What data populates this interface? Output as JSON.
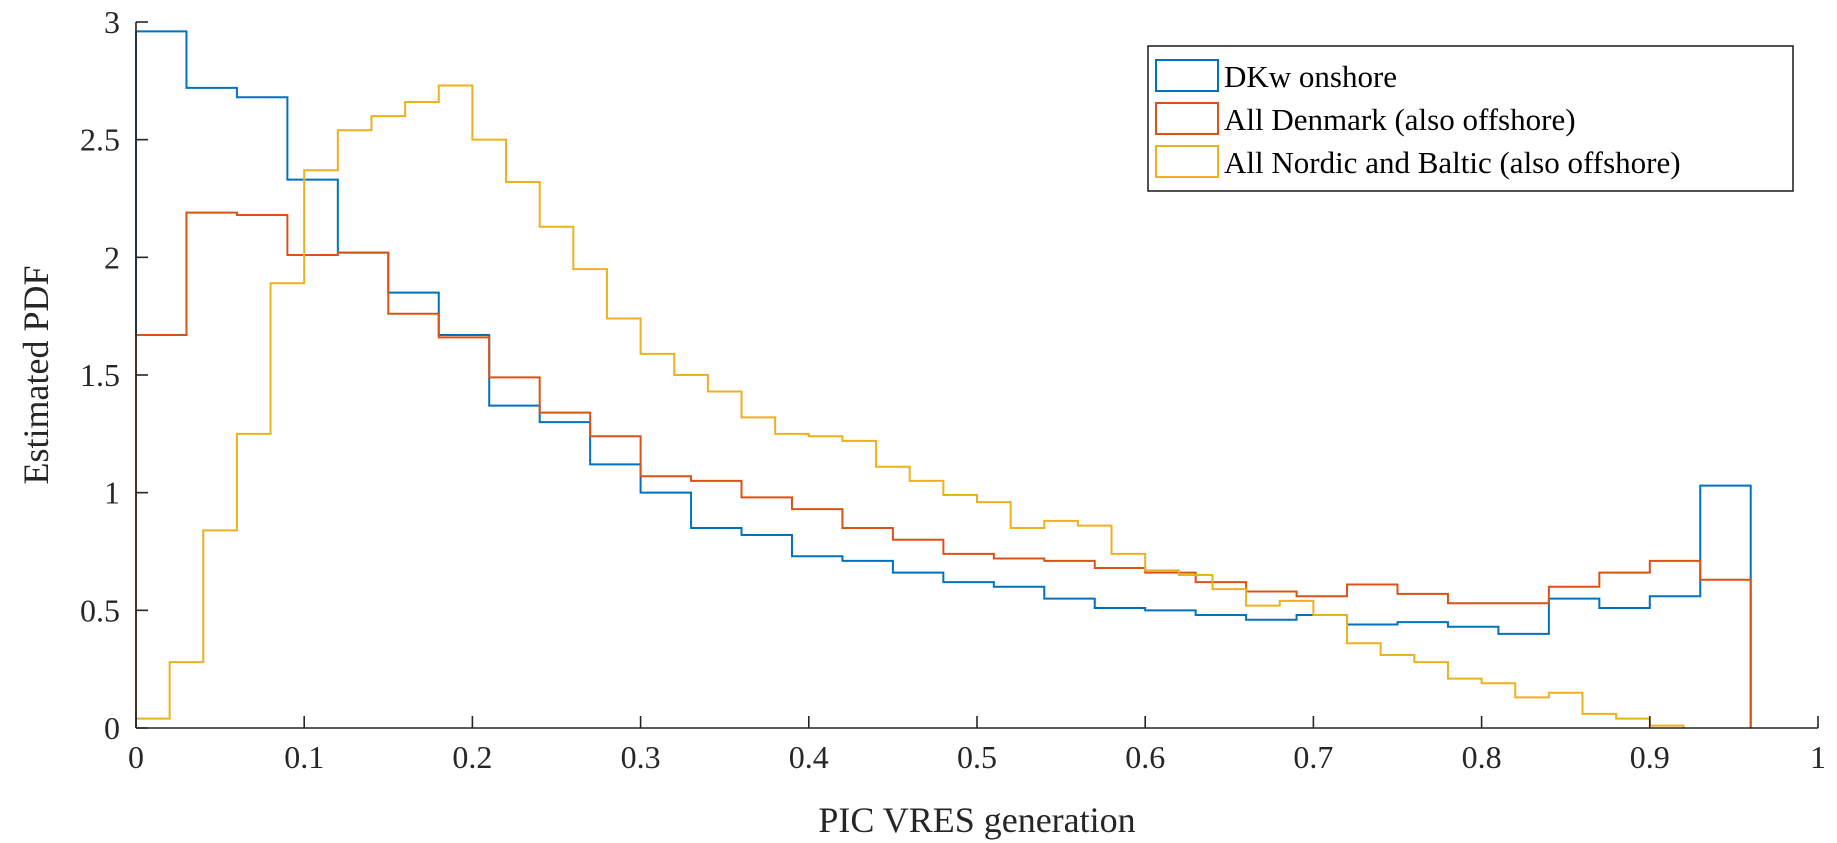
{
  "chart_data": {
    "type": "histogram-stairs",
    "xlabel": "PIC VRES generation",
    "ylabel": "Estimated PDF",
    "xlim": [
      0,
      1
    ],
    "ylim": [
      0,
      3
    ],
    "xticks": [
      0,
      0.1,
      0.2,
      0.3,
      0.4,
      0.5,
      0.6,
      0.7,
      0.8,
      0.9,
      1
    ],
    "xtick_labels": [
      "0",
      "0.1",
      "0.2",
      "0.3",
      "0.4",
      "0.5",
      "0.6",
      "0.7",
      "0.8",
      "0.9",
      "1"
    ],
    "yticks": [
      0,
      0.5,
      1,
      1.5,
      2,
      2.5,
      3
    ],
    "ytick_labels": [
      "0",
      "0.5",
      "1",
      "1.5",
      "2",
      "2.5",
      "3"
    ],
    "grid": false,
    "legend_position": "top-right",
    "series": [
      {
        "name": "DKw onshore",
        "color": "#0072BD",
        "edges": [
          0,
          0.03,
          0.06,
          0.09,
          0.12,
          0.15,
          0.18,
          0.21,
          0.24,
          0.27,
          0.3,
          0.33,
          0.36,
          0.39,
          0.42,
          0.45,
          0.48,
          0.51,
          0.54,
          0.57,
          0.6,
          0.63,
          0.66,
          0.69,
          0.72,
          0.75,
          0.78,
          0.81,
          0.84,
          0.87,
          0.9,
          0.93,
          0.96
        ],
        "values": [
          2.96,
          2.72,
          2.68,
          2.33,
          2.02,
          1.85,
          1.67,
          1.37,
          1.3,
          1.12,
          1.0,
          0.85,
          0.82,
          0.73,
          0.71,
          0.66,
          0.62,
          0.6,
          0.55,
          0.51,
          0.5,
          0.48,
          0.46,
          0.48,
          0.44,
          0.45,
          0.43,
          0.4,
          0.55,
          0.51,
          0.56,
          1.03
        ]
      },
      {
        "name": "All Denmark (also offshore)",
        "color": "#D95319",
        "edges": [
          0,
          0.03,
          0.06,
          0.09,
          0.12,
          0.15,
          0.18,
          0.21,
          0.24,
          0.27,
          0.3,
          0.33,
          0.36,
          0.39,
          0.42,
          0.45,
          0.48,
          0.51,
          0.54,
          0.57,
          0.6,
          0.63,
          0.66,
          0.69,
          0.72,
          0.75,
          0.78,
          0.81,
          0.84,
          0.87,
          0.9,
          0.93,
          0.96
        ],
        "values": [
          1.67,
          2.19,
          2.18,
          2.01,
          2.02,
          1.76,
          1.66,
          1.49,
          1.34,
          1.24,
          1.07,
          1.05,
          0.98,
          0.93,
          0.85,
          0.8,
          0.74,
          0.72,
          0.71,
          0.68,
          0.66,
          0.62,
          0.58,
          0.56,
          0.61,
          0.57,
          0.53,
          0.53,
          0.6,
          0.66,
          0.71,
          0.63
        ]
      },
      {
        "name": "All Nordic and Baltic (also offshore)",
        "color": "#EDB120",
        "edges": [
          0,
          0.02,
          0.04,
          0.06,
          0.08,
          0.1,
          0.12,
          0.14,
          0.16,
          0.18,
          0.2,
          0.22,
          0.24,
          0.26,
          0.28,
          0.3,
          0.32,
          0.34,
          0.36,
          0.38,
          0.4,
          0.42,
          0.44,
          0.46,
          0.48,
          0.5,
          0.52,
          0.54,
          0.56,
          0.58,
          0.6,
          0.62,
          0.64,
          0.66,
          0.68,
          0.7,
          0.72,
          0.74,
          0.76,
          0.78,
          0.8,
          0.82,
          0.84,
          0.86,
          0.88,
          0.9,
          0.92
        ],
        "values": [
          0.04,
          0.28,
          0.84,
          1.25,
          1.89,
          2.37,
          2.54,
          2.6,
          2.66,
          2.73,
          2.5,
          2.32,
          2.13,
          1.95,
          1.74,
          1.59,
          1.5,
          1.43,
          1.32,
          1.25,
          1.24,
          1.22,
          1.11,
          1.05,
          0.99,
          0.96,
          0.85,
          0.88,
          0.86,
          0.74,
          0.67,
          0.65,
          0.59,
          0.52,
          0.54,
          0.48,
          0.36,
          0.31,
          0.28,
          0.21,
          0.19,
          0.13,
          0.15,
          0.06,
          0.04,
          0.01
        ]
      }
    ]
  }
}
